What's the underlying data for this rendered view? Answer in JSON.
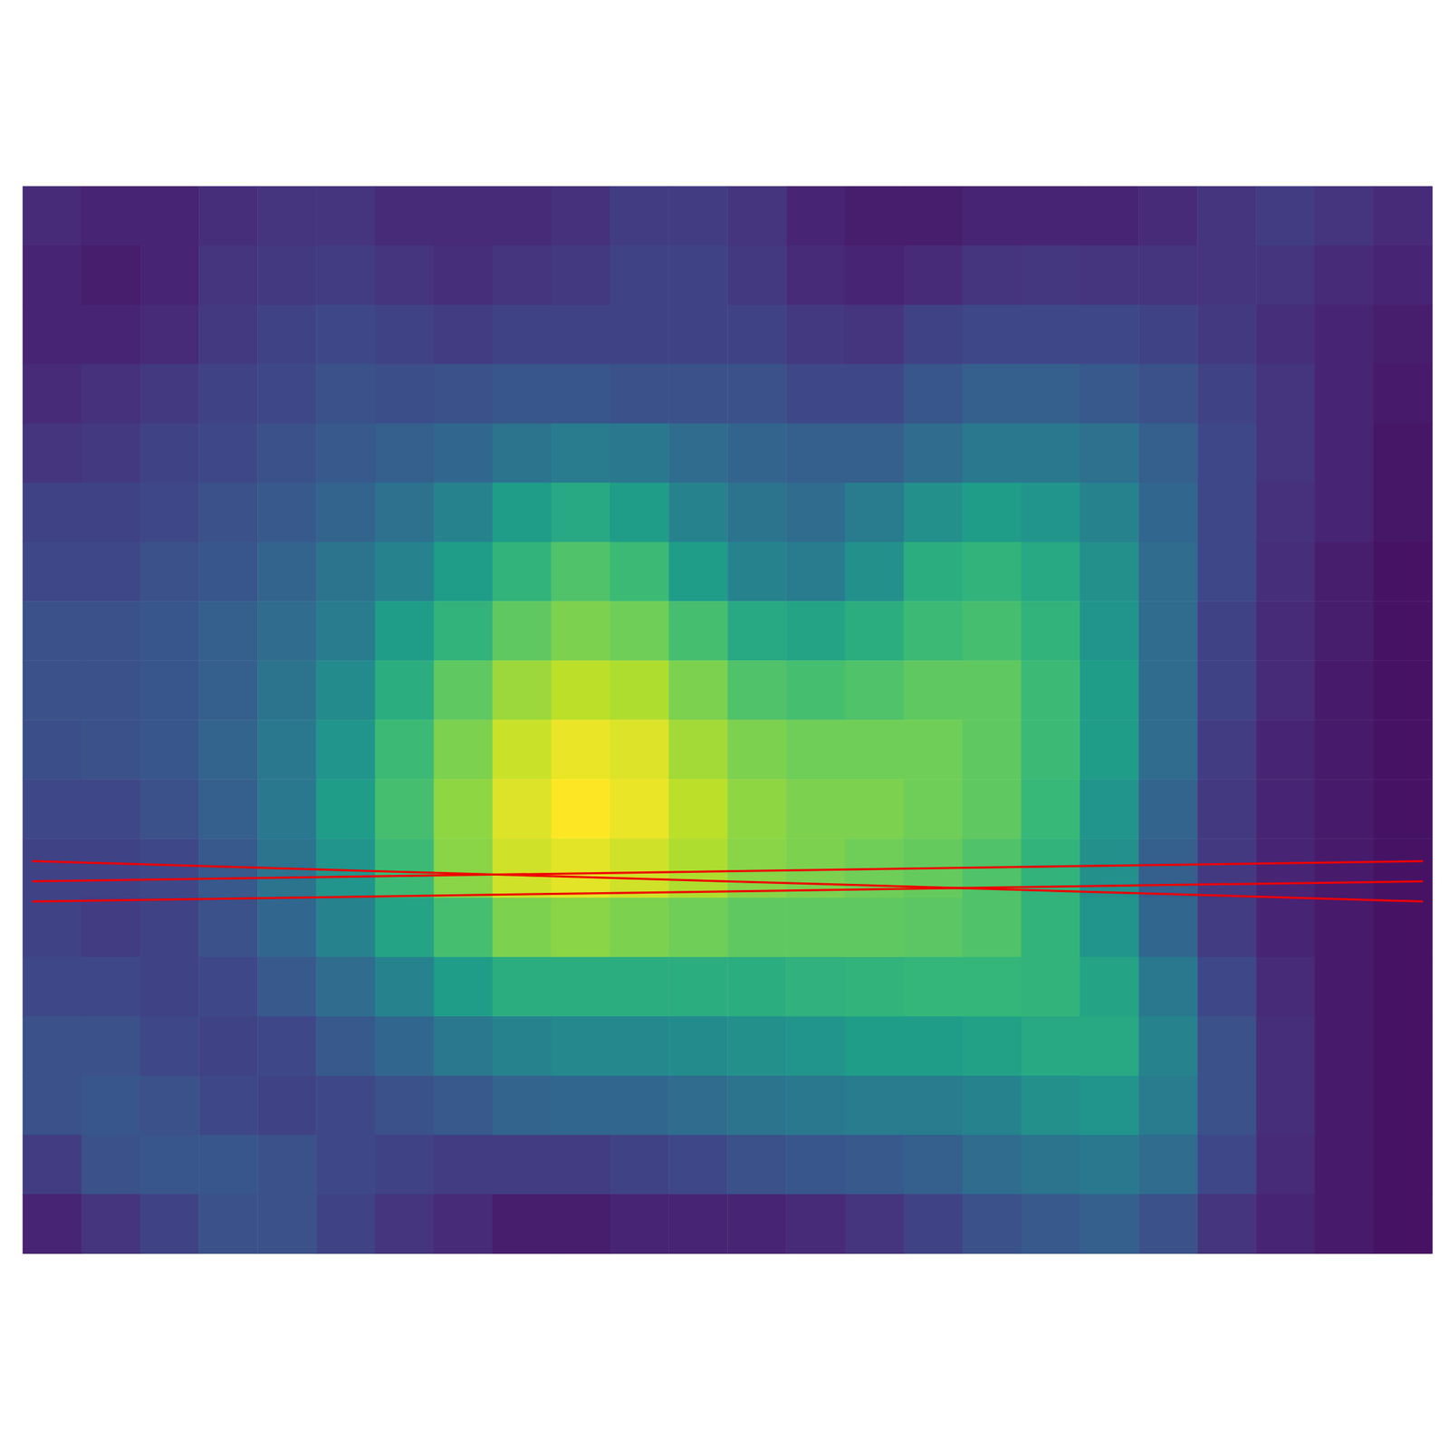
{
  "chart_data": {
    "type": "heatmap",
    "tick_labels": false,
    "grid": false,
    "xlim": [
      0,
      24
    ],
    "ylim": [
      0,
      18
    ],
    "zlim": [
      0,
      1
    ],
    "cells": [
      [
        0.12,
        0.1,
        0.1,
        0.13,
        0.15,
        0.15,
        0.12,
        0.12,
        0.12,
        0.14,
        0.18,
        0.18,
        0.15,
        0.1,
        0.08,
        0.08,
        0.1,
        0.1,
        0.1,
        0.12,
        0.15,
        0.18,
        0.15,
        0.12
      ],
      [
        0.1,
        0.08,
        0.1,
        0.15,
        0.17,
        0.18,
        0.15,
        0.13,
        0.15,
        0.17,
        0.2,
        0.2,
        0.17,
        0.12,
        0.1,
        0.12,
        0.15,
        0.16,
        0.15,
        0.15,
        0.15,
        0.15,
        0.12,
        0.1
      ],
      [
        0.1,
        0.1,
        0.12,
        0.17,
        0.2,
        0.22,
        0.2,
        0.18,
        0.2,
        0.2,
        0.2,
        0.2,
        0.2,
        0.17,
        0.15,
        0.2,
        0.22,
        0.22,
        0.22,
        0.2,
        0.17,
        0.13,
        0.1,
        0.08
      ],
      [
        0.12,
        0.14,
        0.17,
        0.2,
        0.22,
        0.25,
        0.24,
        0.25,
        0.27,
        0.27,
        0.25,
        0.25,
        0.25,
        0.22,
        0.22,
        0.27,
        0.3,
        0.3,
        0.28,
        0.25,
        0.2,
        0.15,
        0.1,
        0.07
      ],
      [
        0.15,
        0.17,
        0.2,
        0.22,
        0.25,
        0.28,
        0.3,
        0.33,
        0.38,
        0.42,
        0.4,
        0.35,
        0.32,
        0.3,
        0.3,
        0.35,
        0.4,
        0.4,
        0.37,
        0.3,
        0.22,
        0.15,
        0.1,
        0.06
      ],
      [
        0.2,
        0.2,
        0.22,
        0.25,
        0.28,
        0.32,
        0.37,
        0.45,
        0.55,
        0.6,
        0.55,
        0.45,
        0.38,
        0.35,
        0.42,
        0.5,
        0.55,
        0.52,
        0.45,
        0.33,
        0.22,
        0.14,
        0.1,
        0.06
      ],
      [
        0.22,
        0.22,
        0.25,
        0.27,
        0.32,
        0.38,
        0.45,
        0.55,
        0.65,
        0.72,
        0.68,
        0.55,
        0.45,
        0.42,
        0.5,
        0.62,
        0.65,
        0.6,
        0.5,
        0.35,
        0.22,
        0.13,
        0.08,
        0.05
      ],
      [
        0.25,
        0.25,
        0.27,
        0.3,
        0.35,
        0.42,
        0.55,
        0.65,
        0.75,
        0.8,
        0.78,
        0.7,
        0.6,
        0.58,
        0.62,
        0.68,
        0.7,
        0.65,
        0.52,
        0.35,
        0.2,
        0.12,
        0.08,
        0.05
      ],
      [
        0.25,
        0.25,
        0.27,
        0.3,
        0.38,
        0.48,
        0.62,
        0.75,
        0.85,
        0.9,
        0.88,
        0.8,
        0.72,
        0.7,
        0.72,
        0.75,
        0.75,
        0.68,
        0.55,
        0.35,
        0.2,
        0.12,
        0.07,
        0.05
      ],
      [
        0.24,
        0.25,
        0.27,
        0.32,
        0.4,
        0.52,
        0.68,
        0.8,
        0.92,
        0.97,
        0.95,
        0.86,
        0.8,
        0.78,
        0.78,
        0.78,
        0.75,
        0.68,
        0.55,
        0.35,
        0.18,
        0.1,
        0.07,
        0.05
      ],
      [
        0.22,
        0.22,
        0.25,
        0.3,
        0.4,
        0.55,
        0.7,
        0.83,
        0.95,
        1.0,
        0.97,
        0.9,
        0.83,
        0.8,
        0.8,
        0.78,
        0.75,
        0.67,
        0.52,
        0.32,
        0.17,
        0.1,
        0.07,
        0.05
      ],
      [
        0.2,
        0.2,
        0.22,
        0.28,
        0.38,
        0.52,
        0.68,
        0.82,
        0.93,
        0.96,
        0.93,
        0.88,
        0.82,
        0.8,
        0.78,
        0.76,
        0.72,
        0.65,
        0.5,
        0.3,
        0.17,
        0.1,
        0.07,
        0.05
      ],
      [
        0.2,
        0.18,
        0.2,
        0.25,
        0.33,
        0.45,
        0.58,
        0.7,
        0.8,
        0.82,
        0.8,
        0.78,
        0.75,
        0.75,
        0.75,
        0.74,
        0.72,
        0.65,
        0.52,
        0.33,
        0.18,
        0.1,
        0.07,
        0.05
      ],
      [
        0.22,
        0.22,
        0.2,
        0.22,
        0.28,
        0.35,
        0.45,
        0.55,
        0.62,
        0.62,
        0.62,
        0.62,
        0.62,
        0.64,
        0.65,
        0.66,
        0.66,
        0.65,
        0.58,
        0.4,
        0.22,
        0.12,
        0.07,
        0.05
      ],
      [
        0.25,
        0.25,
        0.22,
        0.2,
        0.22,
        0.28,
        0.33,
        0.4,
        0.45,
        0.47,
        0.47,
        0.48,
        0.5,
        0.52,
        0.55,
        0.55,
        0.57,
        0.6,
        0.6,
        0.45,
        0.25,
        0.13,
        0.07,
        0.05
      ],
      [
        0.25,
        0.27,
        0.25,
        0.22,
        0.2,
        0.22,
        0.25,
        0.28,
        0.32,
        0.33,
        0.33,
        0.35,
        0.38,
        0.4,
        0.42,
        0.42,
        0.45,
        0.5,
        0.52,
        0.42,
        0.25,
        0.13,
        0.07,
        0.05
      ],
      [
        0.18,
        0.25,
        0.27,
        0.27,
        0.25,
        0.22,
        0.2,
        0.18,
        0.18,
        0.18,
        0.2,
        0.22,
        0.25,
        0.27,
        0.28,
        0.3,
        0.35,
        0.38,
        0.4,
        0.35,
        0.22,
        0.12,
        0.07,
        0.05
      ],
      [
        0.1,
        0.15,
        0.2,
        0.25,
        0.25,
        0.2,
        0.15,
        0.12,
        0.08,
        0.08,
        0.1,
        0.1,
        0.1,
        0.12,
        0.15,
        0.2,
        0.25,
        0.28,
        0.3,
        0.25,
        0.15,
        0.1,
        0.07,
        0.05
      ]
    ],
    "lines": [
      {
        "x": [
          0.16,
          23.84
        ],
        "y": [
          11.38,
          12.06
        ],
        "color": "#ee0000"
      },
      {
        "x": [
          0.16,
          23.84
        ],
        "y": [
          11.72,
          11.38
        ],
        "color": "#ee0000"
      },
      {
        "x": [
          0.16,
          23.84
        ],
        "y": [
          12.06,
          11.72
        ],
        "color": "#ee0000"
      }
    ]
  }
}
